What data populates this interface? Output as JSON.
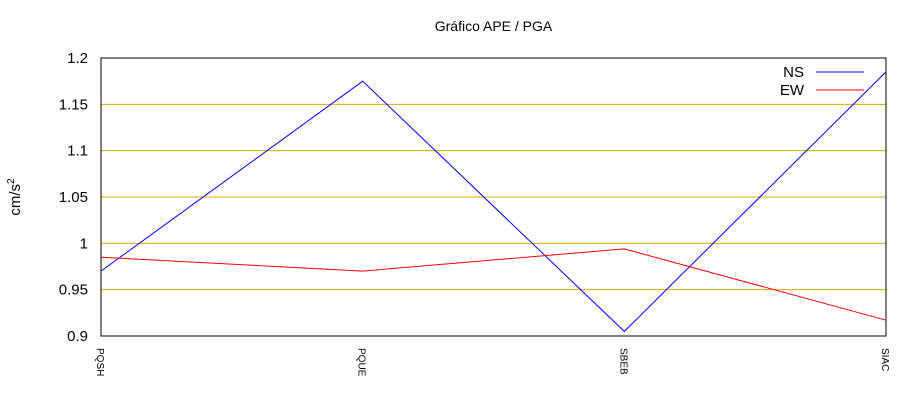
{
  "chart_data": {
    "type": "line",
    "title": "Gráfico  APE / PGA",
    "xlabel": "",
    "ylabel": "cm/s",
    "ylabel_superscript": "2",
    "categories": [
      "PQSH",
      "PQUE",
      "SBEB",
      "SIAC"
    ],
    "yticks": [
      "1.2",
      "1.15",
      "1.1",
      "1.05",
      "1",
      "0.95",
      "0.9"
    ],
    "ylim": [
      0.9,
      1.2
    ],
    "grid": "horizontal",
    "legend": "top-right",
    "series": [
      {
        "name": "NS",
        "color": "#0000ff",
        "values": [
          0.97,
          1.175,
          0.905,
          1.185
        ]
      },
      {
        "name": "EW",
        "color": "#ff0000",
        "values": [
          0.985,
          0.97,
          0.994,
          0.917
        ]
      }
    ],
    "grid_color": "#e0a800"
  }
}
